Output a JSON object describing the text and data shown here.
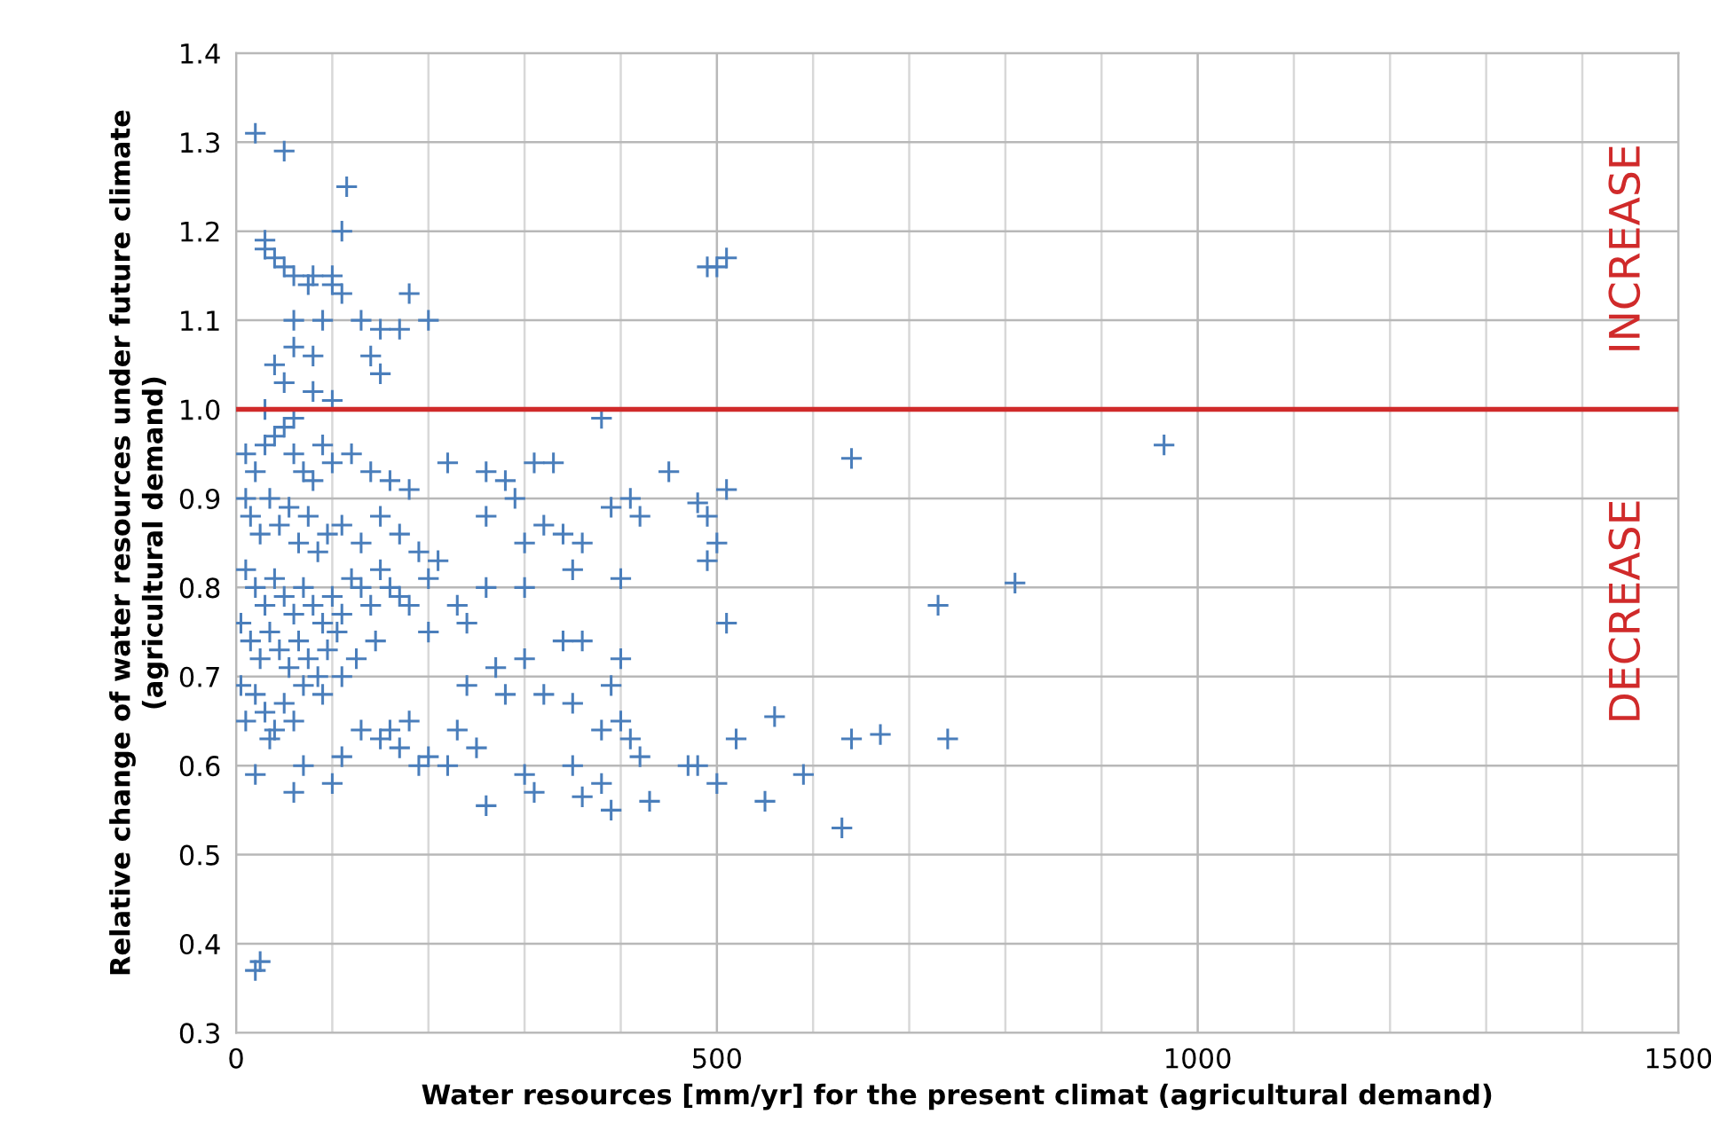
{
  "chart_data": {
    "type": "scatter",
    "xlabel": "Water resources [mm/yr] for the present climat (agricultural demand)",
    "ylabel": "Relative change of water resources under future climate\n(agricultural demand)",
    "annotations": [
      "INCREASE",
      "DECREASE"
    ],
    "x": [
      20,
      50,
      115,
      110,
      30,
      30,
      40,
      50,
      60,
      80,
      100,
      75,
      100,
      110,
      180,
      200,
      60,
      90,
      130,
      150,
      170,
      60,
      80,
      140,
      150,
      40,
      50,
      80,
      100,
      30,
      60,
      380,
      500,
      510,
      490,
      965,
      640,
      510,
      490,
      480,
      500,
      490,
      730,
      810,
      510,
      640,
      670,
      740,
      630,
      590,
      550,
      560,
      520,
      500,
      480,
      470,
      220,
      260,
      280,
      310,
      330,
      290,
      260,
      320,
      300,
      340,
      360,
      410,
      390,
      420,
      450,
      400,
      350,
      300,
      260,
      240,
      200,
      180,
      230,
      340,
      360,
      400,
      390,
      300,
      270,
      320,
      240,
      280,
      350,
      400,
      380,
      420,
      410,
      350,
      300,
      310,
      260,
      360,
      390,
      430,
      380,
      250,
      200,
      230,
      160,
      170,
      190,
      130,
      150,
      100,
      60,
      20,
      70,
      110,
      220,
      180,
      20,
      25,
      5,
      10,
      5,
      10,
      20,
      30,
      40,
      50,
      60,
      70,
      80,
      90,
      100,
      120,
      140,
      160,
      180,
      15,
      25,
      35,
      45,
      55,
      65,
      75,
      85,
      95,
      110,
      130,
      150,
      170,
      190,
      210,
      10,
      20,
      30,
      40,
      50,
      60,
      70,
      80,
      90,
      100,
      110,
      120,
      130,
      140,
      150,
      160,
      170,
      200,
      15,
      25,
      35,
      45,
      55,
      65,
      75,
      85,
      95,
      105,
      125,
      145,
      20,
      30,
      40,
      50,
      60,
      70,
      90,
      110,
      10,
      35
    ],
    "values": [
      1.31,
      1.29,
      1.25,
      1.2,
      1.19,
      1.18,
      1.17,
      1.16,
      1.15,
      1.15,
      1.15,
      1.14,
      1.14,
      1.13,
      1.13,
      1.1,
      1.1,
      1.1,
      1.1,
      1.09,
      1.09,
      1.07,
      1.06,
      1.06,
      1.04,
      1.05,
      1.03,
      1.02,
      1.01,
      1.0,
      0.99,
      0.99,
      1.16,
      1.17,
      1.16,
      0.96,
      0.945,
      0.91,
      0.88,
      0.895,
      0.85,
      0.83,
      0.78,
      0.805,
      0.76,
      0.63,
      0.635,
      0.63,
      0.53,
      0.59,
      0.56,
      0.655,
      0.63,
      0.58,
      0.6,
      0.6,
      0.94,
      0.93,
      0.92,
      0.94,
      0.94,
      0.9,
      0.88,
      0.87,
      0.85,
      0.86,
      0.85,
      0.9,
      0.89,
      0.88,
      0.93,
      0.81,
      0.82,
      0.8,
      0.8,
      0.76,
      0.75,
      0.78,
      0.78,
      0.74,
      0.74,
      0.72,
      0.69,
      0.72,
      0.71,
      0.68,
      0.69,
      0.68,
      0.67,
      0.65,
      0.64,
      0.61,
      0.63,
      0.6,
      0.59,
      0.57,
      0.555,
      0.565,
      0.55,
      0.56,
      0.58,
      0.62,
      0.61,
      0.64,
      0.64,
      0.62,
      0.6,
      0.64,
      0.63,
      0.58,
      0.57,
      0.59,
      0.6,
      0.61,
      0.6,
      0.65,
      0.37,
      0.38,
      0.69,
      0.9,
      0.76,
      0.95,
      0.93,
      0.96,
      0.97,
      0.98,
      0.95,
      0.93,
      0.92,
      0.96,
      0.94,
      0.95,
      0.93,
      0.92,
      0.91,
      0.88,
      0.86,
      0.9,
      0.87,
      0.89,
      0.85,
      0.88,
      0.84,
      0.86,
      0.87,
      0.85,
      0.88,
      0.86,
      0.84,
      0.83,
      0.82,
      0.8,
      0.78,
      0.81,
      0.79,
      0.77,
      0.8,
      0.78,
      0.76,
      0.79,
      0.77,
      0.81,
      0.8,
      0.78,
      0.82,
      0.8,
      0.79,
      0.81,
      0.74,
      0.72,
      0.75,
      0.73,
      0.71,
      0.74,
      0.72,
      0.7,
      0.73,
      0.75,
      0.72,
      0.74,
      0.68,
      0.66,
      0.64,
      0.67,
      0.65,
      0.69,
      0.68,
      0.7,
      0.65,
      0.63
    ],
    "color": "#4a7ebb",
    "marker": "cross",
    "xlim": [
      0,
      1500
    ],
    "ylim": [
      0.3,
      1.4
    ],
    "xticks": [
      0,
      {
        "value": 100,
        "label": null
      },
      {
        "value": 200,
        "label": null
      },
      {
        "value": 300,
        "label": null
      },
      {
        "value": 400,
        "label": null
      },
      500,
      {
        "value": 600,
        "label": null
      },
      {
        "value": 700,
        "label": null
      },
      {
        "value": 800,
        "label": null
      },
      {
        "value": 900,
        "label": null
      },
      1000,
      {
        "value": 1100,
        "label": null
      },
      {
        "value": 1200,
        "label": null
      },
      {
        "value": 1300,
        "label": null
      },
      {
        "value": 1400,
        "label": null
      },
      1500
    ],
    "yticks": [
      {
        "value": 0.3,
        "label": "0.3"
      },
      {
        "value": 0.4,
        "label": "0.4"
      },
      {
        "value": 0.5,
        "label": "0.5"
      },
      {
        "value": 0.6,
        "label": "0.6"
      },
      {
        "value": 0.7,
        "label": "0.7"
      },
      {
        "value": 0.8,
        "label": "0.8"
      },
      {
        "value": 0.9,
        "label": "0.9"
      },
      {
        "value": 1.0,
        "label": "1.0"
      },
      {
        "value": 1.1,
        "label": "1.1"
      },
      {
        "value": 1.2,
        "label": "1.2"
      },
      {
        "value": 1.3,
        "label": "1.3"
      },
      {
        "value": 1.4,
        "label": "1.4"
      }
    ],
    "grid": true,
    "ref_lines": [
      {
        "axis": "y",
        "value": 1.0,
        "color": "#d02a2a"
      }
    ]
  }
}
